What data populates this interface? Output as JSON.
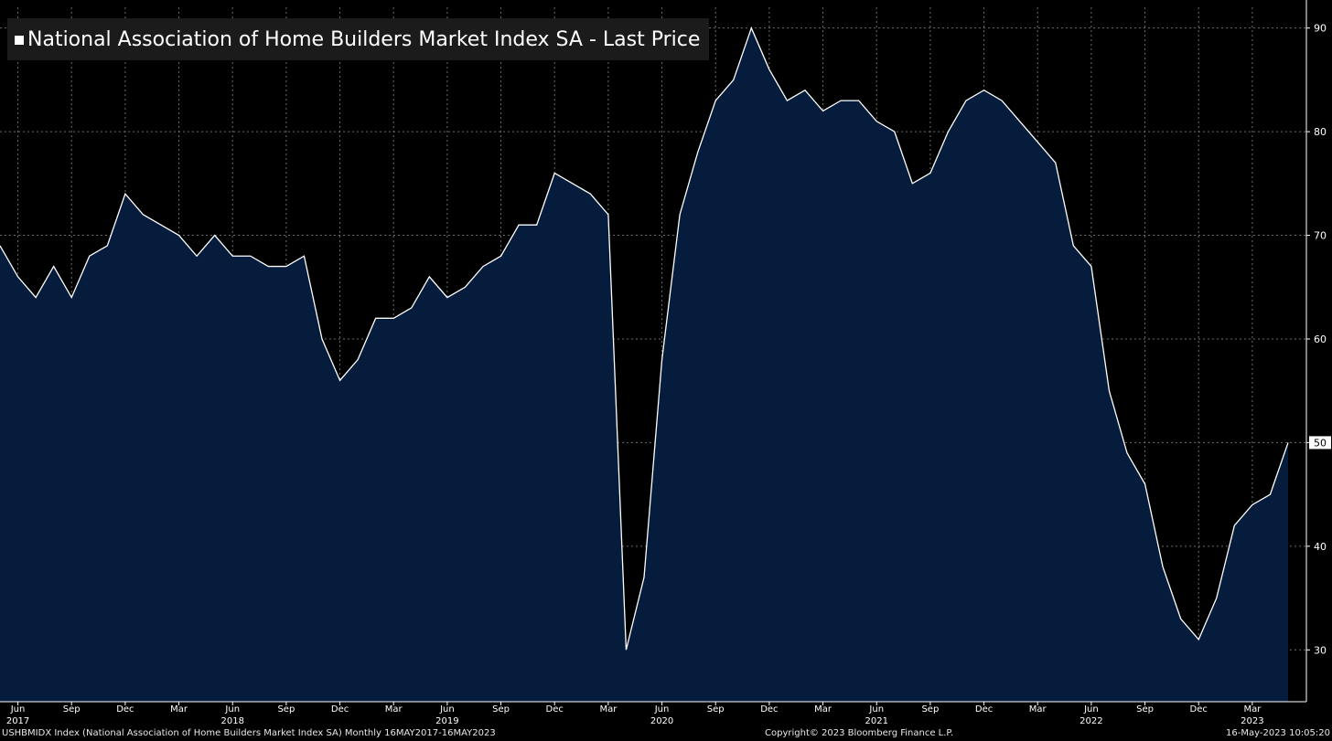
{
  "title": "National Association of Home Builders Market Index SA - Last Price",
  "footer": {
    "left": "USHBMIDX Index (National Association of Home Builders Market Index SA)  Monthly 16MAY2017-16MAY2023",
    "center": "Copyright© 2023 Bloomberg Finance L.P.",
    "right": "16-May-2023 10:05:20"
  },
  "colors": {
    "background": "#000000",
    "area_fill": "#051c3c",
    "line": "#ffffff",
    "grid": "#6b6b6b",
    "title_bg": "#1b1b1b"
  },
  "chart_data": {
    "type": "area",
    "title": "National Association of Home Builders Market Index SA - Last Price",
    "x_start": "2017-05",
    "x_end": "2023-05",
    "frequency": "monthly",
    "x": [
      "2017-05",
      "2017-06",
      "2017-07",
      "2017-08",
      "2017-09",
      "2017-10",
      "2017-11",
      "2017-12",
      "2018-01",
      "2018-02",
      "2018-03",
      "2018-04",
      "2018-05",
      "2018-06",
      "2018-07",
      "2018-08",
      "2018-09",
      "2018-10",
      "2018-11",
      "2018-12",
      "2019-01",
      "2019-02",
      "2019-03",
      "2019-04",
      "2019-05",
      "2019-06",
      "2019-07",
      "2019-08",
      "2019-09",
      "2019-10",
      "2019-11",
      "2019-12",
      "2020-01",
      "2020-02",
      "2020-03",
      "2020-04",
      "2020-05",
      "2020-06",
      "2020-07",
      "2020-08",
      "2020-09",
      "2020-10",
      "2020-11",
      "2020-12",
      "2021-01",
      "2021-02",
      "2021-03",
      "2021-04",
      "2021-05",
      "2021-06",
      "2021-07",
      "2021-08",
      "2021-09",
      "2021-10",
      "2021-11",
      "2021-12",
      "2022-01",
      "2022-02",
      "2022-03",
      "2022-04",
      "2022-05",
      "2022-06",
      "2022-07",
      "2022-08",
      "2022-09",
      "2022-10",
      "2022-11",
      "2022-12",
      "2023-01",
      "2023-02",
      "2023-03",
      "2023-04",
      "2023-05"
    ],
    "values": [
      69,
      66,
      64,
      67,
      64,
      68,
      69,
      74,
      72,
      71,
      70,
      68,
      70,
      68,
      68,
      67,
      67,
      68,
      60,
      56,
      58,
      62,
      62,
      63,
      66,
      64,
      65,
      67,
      68,
      71,
      71,
      76,
      75,
      74,
      72,
      30,
      37,
      58,
      72,
      78,
      83,
      85,
      90,
      86,
      83,
      84,
      82,
      83,
      83,
      81,
      80,
      75,
      76,
      80,
      83,
      84,
      83,
      81,
      79,
      77,
      69,
      67,
      55,
      49,
      46,
      38,
      33,
      31,
      35,
      42,
      44,
      45,
      50
    ],
    "ylim": [
      25,
      92
    ],
    "yticks": [
      30,
      40,
      50,
      60,
      70,
      80,
      90
    ],
    "last_value_label": "50",
    "x_tick_labels": [
      {
        "x": "2017-06",
        "month": "Jun",
        "year": "2017"
      },
      {
        "x": "2017-09",
        "month": "Sep",
        "year": ""
      },
      {
        "x": "2017-12",
        "month": "Dec",
        "year": ""
      },
      {
        "x": "2018-03",
        "month": "Mar",
        "year": ""
      },
      {
        "x": "2018-06",
        "month": "Jun",
        "year": "2018"
      },
      {
        "x": "2018-09",
        "month": "Sep",
        "year": ""
      },
      {
        "x": "2018-12",
        "month": "Dec",
        "year": ""
      },
      {
        "x": "2019-03",
        "month": "Mar",
        "year": ""
      },
      {
        "x": "2019-06",
        "month": "Jun",
        "year": "2019"
      },
      {
        "x": "2019-09",
        "month": "Sep",
        "year": ""
      },
      {
        "x": "2019-12",
        "month": "Dec",
        "year": ""
      },
      {
        "x": "2020-03",
        "month": "Mar",
        "year": ""
      },
      {
        "x": "2020-06",
        "month": "Jun",
        "year": "2020"
      },
      {
        "x": "2020-09",
        "month": "Sep",
        "year": ""
      },
      {
        "x": "2020-12",
        "month": "Dec",
        "year": ""
      },
      {
        "x": "2021-03",
        "month": "Mar",
        "year": ""
      },
      {
        "x": "2021-06",
        "month": "Jun",
        "year": "2021"
      },
      {
        "x": "2021-09",
        "month": "Sep",
        "year": ""
      },
      {
        "x": "2021-12",
        "month": "Dec",
        "year": ""
      },
      {
        "x": "2022-03",
        "month": "Mar",
        "year": ""
      },
      {
        "x": "2022-06",
        "month": "Jun",
        "year": "2022"
      },
      {
        "x": "2022-09",
        "month": "Sep",
        "year": ""
      },
      {
        "x": "2022-12",
        "month": "Dec",
        "year": ""
      },
      {
        "x": "2023-03",
        "month": "Mar",
        "year": "2023"
      }
    ],
    "grid": true,
    "y_axis_side": "right"
  }
}
